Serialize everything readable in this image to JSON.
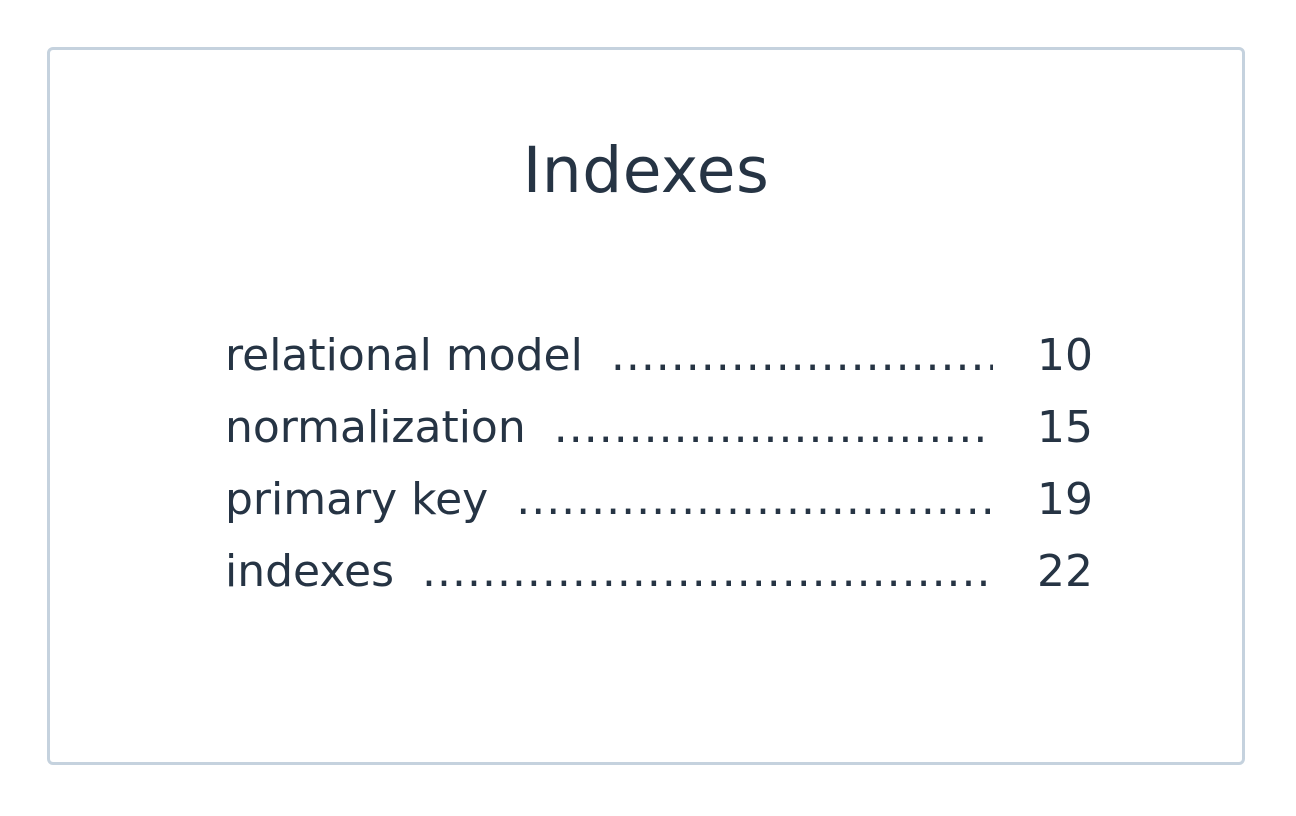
{
  "title": "Indexes",
  "entries": [
    {
      "term": "relational model",
      "page": "10"
    },
    {
      "term": "normalization",
      "page": "15"
    },
    {
      "term": "primary key",
      "page": "19"
    },
    {
      "term": "indexes",
      "page": "22"
    }
  ],
  "colors": {
    "text": "#263444",
    "border": "#c5d2de",
    "background": "#ffffff"
  }
}
